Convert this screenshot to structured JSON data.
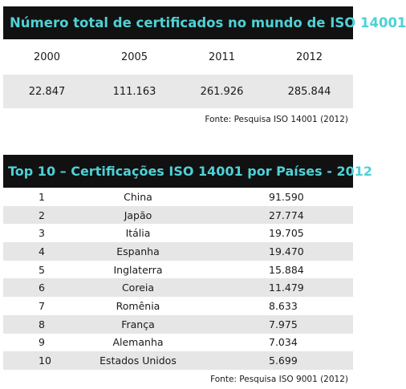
{
  "world_total": {
    "title": "Número total de certificados no mundo de ISO 14001",
    "years": [
      "2000",
      "2005",
      "2011",
      "2012"
    ],
    "values": [
      "22.847",
      "111.163",
      "261.926",
      "285.844"
    ],
    "source": "Fonte: Pesquisa ISO 14001 (2012)"
  },
  "top10": {
    "title": "Top 10 – Certificações ISO 14001 por Países - 2012",
    "rows": [
      {
        "rank": "1",
        "country": "China",
        "count": "91.590"
      },
      {
        "rank": "2",
        "country": "Japão",
        "count": "27.774"
      },
      {
        "rank": "3",
        "country": "Itália",
        "count": "19.705"
      },
      {
        "rank": "4",
        "country": "Espanha",
        "count": "19.470"
      },
      {
        "rank": "5",
        "country": "Inglaterra",
        "count": "15.884"
      },
      {
        "rank": "6",
        "country": "Coreia",
        "count": "11.479"
      },
      {
        "rank": "7",
        "country": "Romênia",
        "count": "8.633"
      },
      {
        "rank": "8",
        "country": "França",
        "count": "7.975"
      },
      {
        "rank": "9",
        "country": "Alemanha",
        "count": "7.034"
      },
      {
        "rank": "10",
        "country": "Estados Unidos",
        "count": "5.699"
      }
    ],
    "source": "Fonte: Pesquisa ISO 9001 (2012)"
  }
}
